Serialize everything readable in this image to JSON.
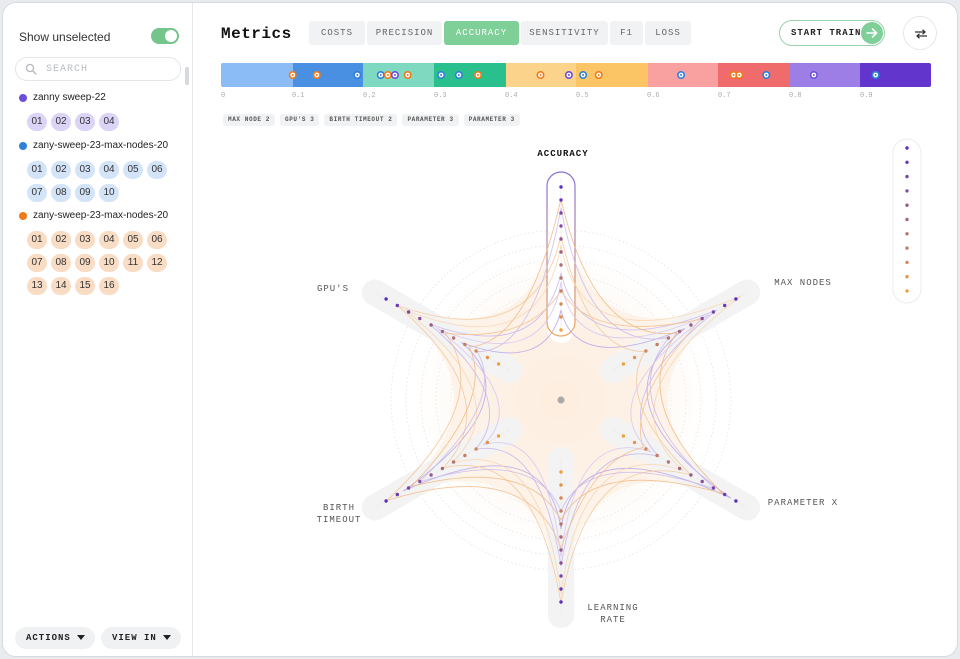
{
  "sidebar": {
    "show_unselected_label": "Show unselected",
    "show_unselected_on": true,
    "search_placeholder": "SEARCH",
    "sweeps": [
      {
        "name": "zanny sweep-22",
        "color": "#6b4fd8",
        "chips": [
          "01",
          "02",
          "03",
          "04"
        ]
      },
      {
        "name": "zany-sweep-23-max-nodes-20",
        "color": "#2f80d8",
        "chips": [
          "01",
          "02",
          "03",
          "04",
          "05",
          "06",
          "07",
          "08",
          "09",
          "10"
        ]
      },
      {
        "name": "zany-sweep-23-max-nodes-20",
        "color": "#f07a1a",
        "chips": [
          "01",
          "02",
          "03",
          "04",
          "05",
          "06",
          "07",
          "08",
          "09",
          "10",
          "11",
          "12",
          "13",
          "14",
          "15",
          "16"
        ]
      }
    ],
    "actions_label": "ACTIONS",
    "view_in_label": "VIEW IN"
  },
  "header": {
    "title": "Metrics",
    "tabs": [
      {
        "label": "COSTS",
        "active": false
      },
      {
        "label": "PRECISION",
        "active": false
      },
      {
        "label": "ACCURACY",
        "active": true
      },
      {
        "label": "SENSITIVITY",
        "active": false
      },
      {
        "label": "F1",
        "active": false
      },
      {
        "label": "LOSS",
        "active": false
      }
    ],
    "start_train_label": "START TRAIN"
  },
  "scale": {
    "ticks": [
      "0",
      "0.1",
      "0.2",
      "0.3",
      "0.4",
      "0.5",
      "0.6",
      "0.7",
      "0.8",
      "0.9"
    ],
    "segments": [
      {
        "to": 0.2,
        "color": "#8cbcf6"
      },
      {
        "to": 0.2,
        "color": "#4a90e2"
      },
      {
        "to": 0.3,
        "color": "#7fd8c0"
      },
      {
        "to": 0.4,
        "color": "#29c08e"
      },
      {
        "to": 0.5,
        "color": "#fcd38a"
      },
      {
        "to": 0.6,
        "color": "#fbc465"
      },
      {
        "to": 0.7,
        "color": "#f9a0a0"
      },
      {
        "to": 0.8,
        "color": "#f06b6b"
      },
      {
        "to": 0.9,
        "color": "#9c7ee6"
      },
      {
        "to": 1.0,
        "color": "#6236cc"
      }
    ],
    "markers": [
      {
        "v": 0.101,
        "color": "#f07a1a"
      },
      {
        "v": 0.135,
        "color": "#f07a1a"
      },
      {
        "v": 0.192,
        "color": "#2f80d8"
      },
      {
        "v": 0.225,
        "color": "#2f80d8"
      },
      {
        "v": 0.235,
        "color": "#f07a1a"
      },
      {
        "v": 0.245,
        "color": "#6b4fd8"
      },
      {
        "v": 0.263,
        "color": "#f07a1a"
      },
      {
        "v": 0.31,
        "color": "#2f80d8"
      },
      {
        "v": 0.335,
        "color": "#2f80d8"
      },
      {
        "v": 0.362,
        "color": "#f07a1a"
      },
      {
        "v": 0.45,
        "color": "#f07a1a"
      },
      {
        "v": 0.49,
        "color": "#6b4fd8"
      },
      {
        "v": 0.51,
        "color": "#2f80d8"
      },
      {
        "v": 0.532,
        "color": "#f07a1a"
      },
      {
        "v": 0.648,
        "color": "#2f80d8"
      },
      {
        "v": 0.722,
        "color": "#f07a1a"
      },
      {
        "v": 0.73,
        "color": "#f07a1a"
      },
      {
        "v": 0.768,
        "color": "#2f80d8"
      },
      {
        "v": 0.835,
        "color": "#6b4fd8"
      },
      {
        "v": 0.922,
        "color": "#2f80d8"
      }
    ]
  },
  "filters": [
    "MAX NODE 2",
    "GPU'S 3",
    "BIRTH TIMEOUT 2",
    "PARAMETER 3",
    "PARAMETER 3"
  ],
  "radar": {
    "axes": [
      "ACCURACY",
      "MAX NODES",
      "PARAMETER X",
      "LEARNING RATE",
      "BIRTH TIMEOUT",
      "GPU'S"
    ],
    "active_axis": "ACCURACY"
  }
}
